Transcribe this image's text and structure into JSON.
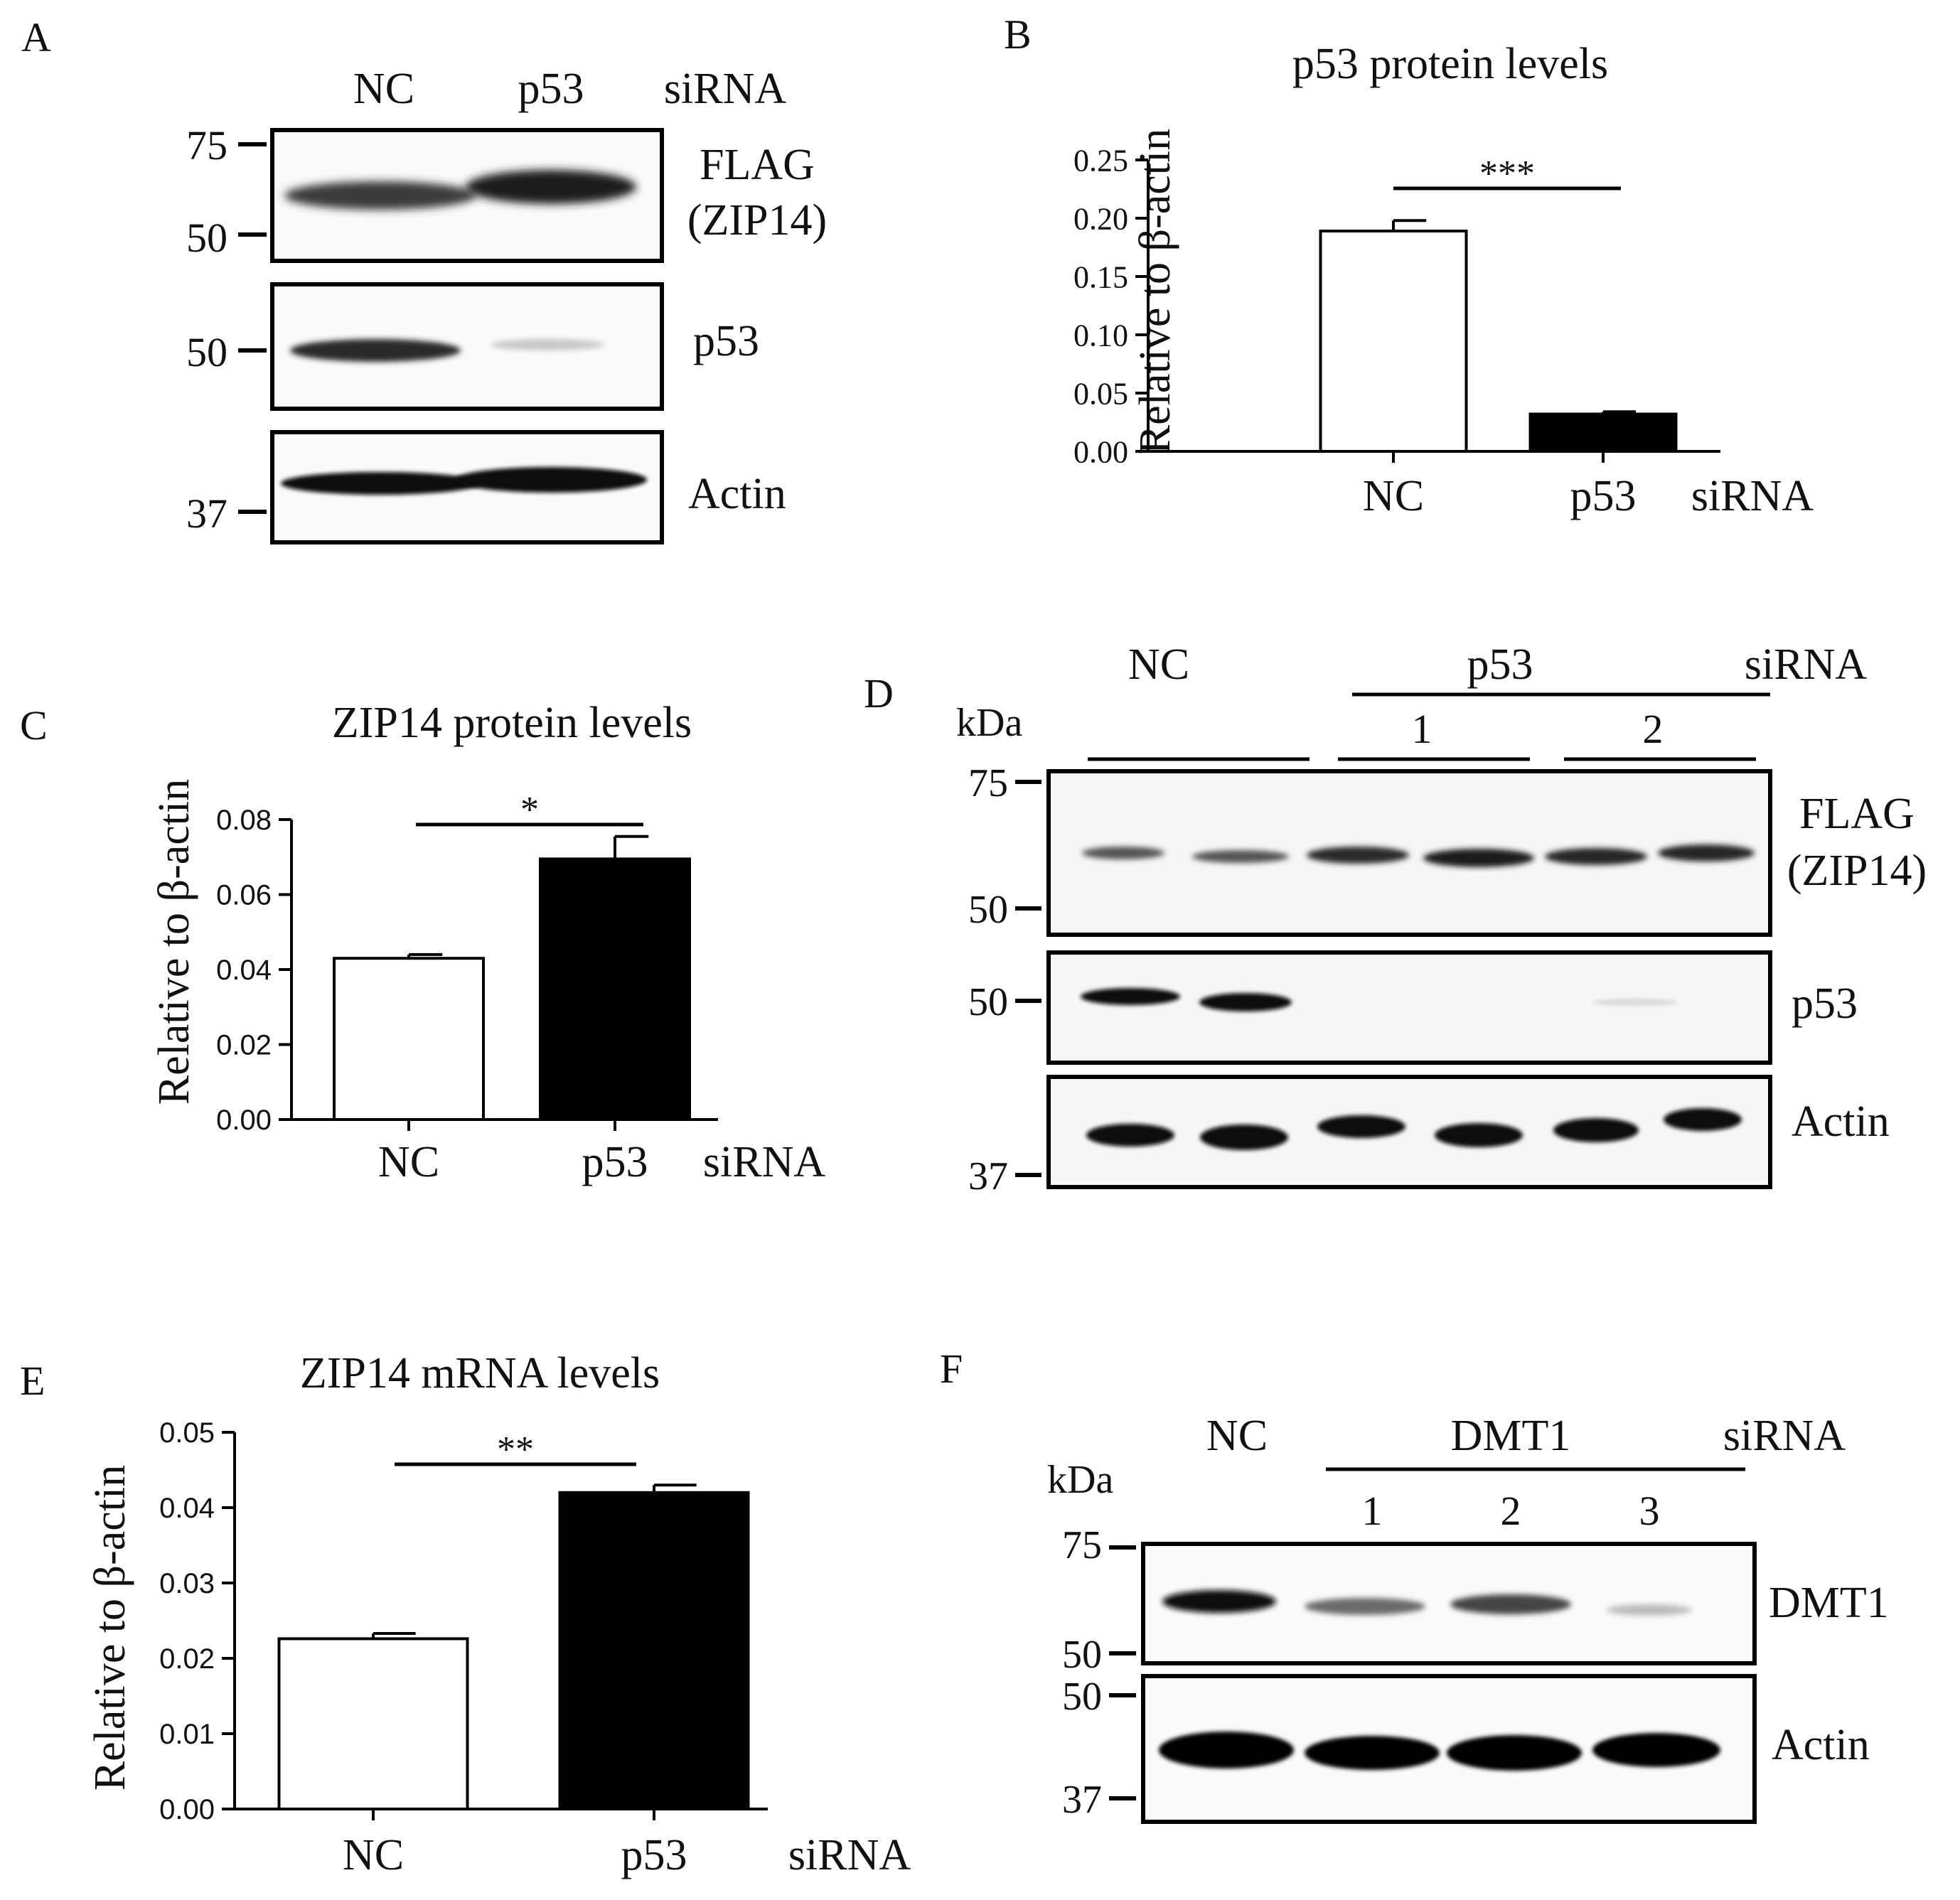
{
  "panels": {
    "A": {
      "letter": "A",
      "lanes": [
        "NC",
        "p53"
      ],
      "treatment": "siRNA",
      "mw_top": [
        "75",
        "50"
      ],
      "mw_mid": [
        "50"
      ],
      "mw_bottom": [
        "37"
      ],
      "blot_labels": [
        "FLAG",
        "(ZIP14)",
        "p53",
        "Actin"
      ]
    },
    "B": {
      "letter": "B",
      "treatment": "siRNA",
      "significance": "***"
    },
    "C": {
      "letter": "C",
      "treatment": "siRNA",
      "significance": "*"
    },
    "D": {
      "letter": "D",
      "kda": "kDa",
      "nc": "NC",
      "group": "p53",
      "treatment": "siRNA",
      "sub_lanes": [
        "1",
        "2"
      ],
      "mw_top": [
        "75",
        "50"
      ],
      "mw_mid": [
        "50"
      ],
      "mw_bottom": [
        "37"
      ],
      "blot_labels": [
        "FLAG",
        "(ZIP14)",
        "p53",
        "Actin"
      ]
    },
    "E": {
      "letter": "E",
      "treatment": "siRNA",
      "significance": "**"
    },
    "F": {
      "letter": "F",
      "kda": "kDa",
      "nc": "NC",
      "group": "DMT1",
      "treatment": "siRNA",
      "sub_lanes": [
        "1",
        "2",
        "3"
      ],
      "mw_top": [
        "75",
        "50"
      ],
      "mw_bottom": [
        "50",
        "37"
      ],
      "blot_labels": [
        "DMT1",
        "Actin"
      ]
    }
  },
  "chart_data": [
    {
      "panel": "B",
      "type": "bar",
      "title": "p53 protein levels",
      "ylabel": "Relative to β-actin",
      "xlabel": "",
      "categories": [
        "NC",
        "p53"
      ],
      "values": [
        0.189,
        0.032
      ],
      "errors": [
        0.009,
        0.002
      ],
      "bar_colors": [
        "#ffffff",
        "#000000"
      ],
      "ylim": [
        0,
        0.25
      ],
      "yticks": [
        "0.00",
        "0.05",
        "0.10",
        "0.15",
        "0.20",
        "0.25"
      ]
    },
    {
      "panel": "C",
      "type": "bar",
      "title": "ZIP14 protein levels",
      "ylabel": "Relative to β-actin",
      "xlabel": "",
      "categories": [
        "NC",
        "p53"
      ],
      "values": [
        0.043,
        0.0695
      ],
      "errors": [
        0.001,
        0.006
      ],
      "bar_colors": [
        "#ffffff",
        "#000000"
      ],
      "ylim": [
        0,
        0.08
      ],
      "yticks": [
        "0.00",
        "0.02",
        "0.04",
        "0.06",
        "0.08"
      ]
    },
    {
      "panel": "E",
      "type": "bar",
      "title": "ZIP14 mRNA levels",
      "ylabel": "Relative to β-actin",
      "xlabel": "",
      "categories": [
        "NC",
        "p53"
      ],
      "values": [
        0.0226,
        0.042
      ],
      "errors": [
        0.0007,
        0.001
      ],
      "bar_colors": [
        "#ffffff",
        "#000000"
      ],
      "ylim": [
        0,
        0.05
      ],
      "yticks": [
        "0.00",
        "0.01",
        "0.02",
        "0.03",
        "0.04",
        "0.05"
      ]
    }
  ]
}
